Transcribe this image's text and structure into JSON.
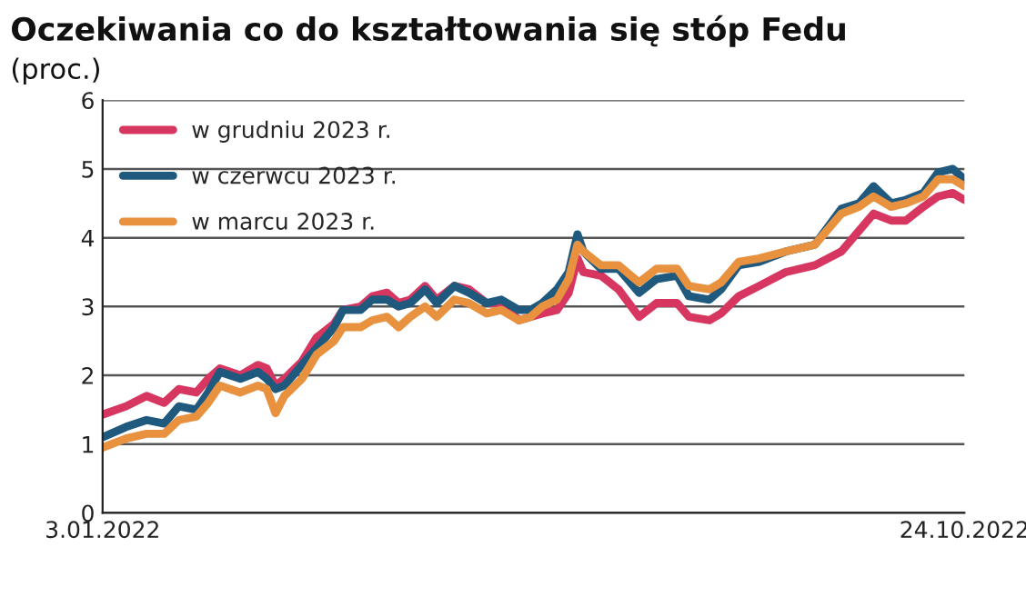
{
  "chart_data": {
    "type": "line",
    "title": "Oczekiwania co do kształtowania się stóp Fedu",
    "subtitle": "(proc.)",
    "x": [
      "2022-01-03",
      "2022-01-11",
      "2022-01-18",
      "2022-01-24",
      "2022-01-29",
      "2022-02-04",
      "2022-02-08",
      "2022-02-12",
      "2022-02-19",
      "2022-02-25",
      "2022-02-28",
      "2022-03-03",
      "2022-03-06",
      "2022-03-12",
      "2022-03-17",
      "2022-03-23",
      "2022-03-26",
      "2022-04-01",
      "2022-04-05",
      "2022-04-10",
      "2022-04-14",
      "2022-04-18",
      "2022-04-23",
      "2022-04-27",
      "2022-05-03",
      "2022-05-08",
      "2022-05-14",
      "2022-05-19",
      "2022-05-25",
      "2022-05-29",
      "2022-06-02",
      "2022-06-07",
      "2022-06-11",
      "2022-06-14",
      "2022-06-16",
      "2022-06-22",
      "2022-06-28",
      "2022-07-05",
      "2022-07-11",
      "2022-07-18",
      "2022-07-22",
      "2022-07-29",
      "2022-08-02",
      "2022-08-08",
      "2022-08-15",
      "2022-08-24",
      "2022-09-03",
      "2022-09-12",
      "2022-09-18",
      "2022-09-23",
      "2022-09-29",
      "2022-10-04",
      "2022-10-10",
      "2022-10-15",
      "2022-10-20",
      "2022-10-24"
    ],
    "series": [
      {
        "name": "w grudniu 2023 r.",
        "color": "#d6365f",
        "values": [
          1.43,
          1.55,
          1.7,
          1.6,
          1.8,
          1.75,
          1.95,
          2.1,
          2.0,
          2.15,
          2.1,
          1.85,
          1.95,
          2.2,
          2.55,
          2.75,
          2.95,
          3.0,
          3.15,
          3.2,
          3.05,
          3.1,
          3.3,
          3.1,
          3.3,
          3.25,
          3.05,
          3.05,
          2.8,
          2.85,
          2.9,
          2.95,
          3.2,
          3.7,
          3.5,
          3.45,
          3.25,
          2.85,
          3.05,
          3.05,
          2.85,
          2.8,
          2.9,
          3.15,
          3.3,
          3.5,
          3.6,
          3.8,
          4.1,
          4.35,
          4.25,
          4.25,
          4.45,
          4.6,
          4.65,
          4.55
        ]
      },
      {
        "name": "w czerwcu 2023 r.",
        "color": "#1f5a7e",
        "values": [
          1.1,
          1.25,
          1.35,
          1.3,
          1.55,
          1.5,
          1.75,
          2.05,
          1.95,
          2.05,
          1.95,
          1.8,
          1.85,
          2.15,
          2.4,
          2.7,
          2.95,
          2.95,
          3.1,
          3.1,
          3.0,
          3.05,
          3.25,
          3.05,
          3.3,
          3.2,
          3.05,
          3.1,
          2.95,
          2.95,
          3.05,
          3.25,
          3.5,
          4.05,
          3.8,
          3.55,
          3.55,
          3.2,
          3.4,
          3.45,
          3.15,
          3.1,
          3.25,
          3.6,
          3.65,
          3.8,
          3.9,
          4.42,
          4.5,
          4.75,
          4.5,
          4.55,
          4.65,
          4.95,
          5.0,
          4.85
        ]
      },
      {
        "name": "w marcu 2023 r.",
        "color": "#e8913f",
        "values": [
          0.95,
          1.08,
          1.15,
          1.15,
          1.35,
          1.4,
          1.6,
          1.85,
          1.75,
          1.85,
          1.8,
          1.45,
          1.7,
          1.95,
          2.3,
          2.5,
          2.7,
          2.7,
          2.8,
          2.85,
          2.7,
          2.85,
          3.0,
          2.85,
          3.1,
          3.05,
          2.9,
          2.95,
          2.8,
          2.85,
          3.0,
          3.1,
          3.4,
          3.9,
          3.8,
          3.6,
          3.6,
          3.35,
          3.55,
          3.55,
          3.3,
          3.25,
          3.35,
          3.65,
          3.7,
          3.8,
          3.9,
          4.35,
          4.45,
          4.6,
          4.45,
          4.5,
          4.6,
          4.85,
          4.85,
          4.75
        ]
      }
    ],
    "xlim": [
      "2022-01-03",
      "2022-10-24"
    ],
    "xticks": [
      {
        "value": "2022-01-03",
        "label": "3.01.2022"
      },
      {
        "value": "2022-10-24",
        "label": "24.10.2022"
      }
    ],
    "ylim": [
      0,
      6
    ],
    "yticks": [
      0,
      1,
      2,
      3,
      4,
      5,
      6
    ],
    "grid": "y",
    "legend": "top left",
    "marker": "none",
    "line_style": "solid"
  }
}
